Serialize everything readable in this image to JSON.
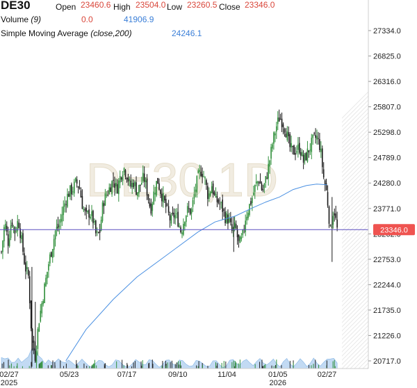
{
  "header": {
    "symbol": "DE30",
    "open_label": "Open",
    "open_value": "23460.6",
    "high_label": "High",
    "high_value": "23504.0",
    "low_label": "Low",
    "low_value": "23260.5",
    "close_label": "Close",
    "close_value": "23346.0",
    "volume_label": "Volume",
    "volume_param": "(9)",
    "volume_value_1": "0.0",
    "volume_value_2": "41906.9",
    "sma_label": "Simple Moving Average",
    "sma_param": "(close,200)",
    "sma_value": "24246.1"
  },
  "watermark": "DE30,1D",
  "colors": {
    "up": "#2f8f3a",
    "down": "#1a1a1a",
    "sma": "#4a90e2",
    "price_line": "#5b4fbf",
    "last_price_bg": "#ef5350",
    "red_text": "#d9463a",
    "blue_text": "#3b7fd8"
  },
  "chart_data": {
    "type": "candlestick",
    "y_ticks": [
      "27334.0",
      "26825.0",
      "26316.0",
      "25807.0",
      "25298.0",
      "24789.0",
      "24280.0",
      "23771.0",
      "23262.0",
      "22753.0",
      "22244.0",
      "21735.0",
      "21226.0",
      "20717.0"
    ],
    "ylim": [
      20500,
      27600
    ],
    "x_ticks": [
      {
        "label": "02/27",
        "sub": "2025",
        "pos": 0.0
      },
      {
        "label": "05/23",
        "sub": "",
        "pos": 0.2
      },
      {
        "label": "07/17",
        "sub": "",
        "pos": 0.37
      },
      {
        "label": "09/10",
        "sub": "",
        "pos": 0.52
      },
      {
        "label": "11/04",
        "sub": "",
        "pos": 0.665
      },
      {
        "label": "01/05",
        "sub": "2026",
        "pos": 0.815
      },
      {
        "label": "02/27",
        "sub": "",
        "pos": 0.96
      }
    ],
    "last_price": 23346.0,
    "last_price_label": "23346.0",
    "close_path": [
      [
        0.0,
        22900
      ],
      [
        0.01,
        23500
      ],
      [
        0.02,
        23100
      ],
      [
        0.03,
        23550
      ],
      [
        0.04,
        23300
      ],
      [
        0.05,
        23550
      ],
      [
        0.06,
        23100
      ],
      [
        0.07,
        22600
      ],
      [
        0.08,
        22400
      ],
      [
        0.09,
        21100
      ],
      [
        0.1,
        20800
      ],
      [
        0.11,
        21500
      ],
      [
        0.12,
        21900
      ],
      [
        0.13,
        22300
      ],
      [
        0.14,
        22700
      ],
      [
        0.15,
        23000
      ],
      [
        0.16,
        23350
      ],
      [
        0.17,
        23400
      ],
      [
        0.18,
        23700
      ],
      [
        0.19,
        23950
      ],
      [
        0.2,
        24100
      ],
      [
        0.21,
        24150
      ],
      [
        0.22,
        24300
      ],
      [
        0.23,
        24200
      ],
      [
        0.24,
        23800
      ],
      [
        0.25,
        23600
      ],
      [
        0.26,
        23700
      ],
      [
        0.27,
        23550
      ],
      [
        0.28,
        23200
      ],
      [
        0.29,
        23300
      ],
      [
        0.3,
        23900
      ],
      [
        0.31,
        24050
      ],
      [
        0.32,
        24200
      ],
      [
        0.33,
        24350
      ],
      [
        0.34,
        24150
      ],
      [
        0.35,
        24400
      ],
      [
        0.36,
        24600
      ],
      [
        0.37,
        24450
      ],
      [
        0.38,
        24200
      ],
      [
        0.39,
        24300
      ],
      [
        0.4,
        24100
      ],
      [
        0.41,
        24250
      ],
      [
        0.42,
        24400
      ],
      [
        0.43,
        24100
      ],
      [
        0.44,
        23750
      ],
      [
        0.45,
        24100
      ],
      [
        0.46,
        24350
      ],
      [
        0.47,
        24100
      ],
      [
        0.48,
        23900
      ],
      [
        0.49,
        23700
      ],
      [
        0.5,
        23500
      ],
      [
        0.51,
        23650
      ],
      [
        0.52,
        23550
      ],
      [
        0.53,
        23300
      ],
      [
        0.54,
        23600
      ],
      [
        0.55,
        23750
      ],
      [
        0.56,
        23700
      ],
      [
        0.57,
        24100
      ],
      [
        0.58,
        24400
      ],
      [
        0.59,
        24550
      ],
      [
        0.6,
        24350
      ],
      [
        0.61,
        24000
      ],
      [
        0.62,
        24250
      ],
      [
        0.63,
        23950
      ],
      [
        0.64,
        23900
      ],
      [
        0.65,
        23800
      ],
      [
        0.66,
        23600
      ],
      [
        0.67,
        23550
      ],
      [
        0.68,
        23300
      ],
      [
        0.69,
        23400
      ],
      [
        0.7,
        23050
      ],
      [
        0.71,
        23150
      ],
      [
        0.72,
        23600
      ],
      [
        0.73,
        23800
      ],
      [
        0.74,
        24000
      ],
      [
        0.75,
        24250
      ],
      [
        0.76,
        24350
      ],
      [
        0.77,
        24100
      ],
      [
        0.78,
        24350
      ],
      [
        0.79,
        24700
      ],
      [
        0.8,
        25100
      ],
      [
        0.81,
        25400
      ],
      [
        0.82,
        25600
      ],
      [
        0.83,
        25500
      ],
      [
        0.84,
        25300
      ],
      [
        0.85,
        25000
      ],
      [
        0.86,
        24900
      ],
      [
        0.87,
        24950
      ],
      [
        0.88,
        25000
      ],
      [
        0.89,
        24700
      ],
      [
        0.9,
        24850
      ],
      [
        0.91,
        25000
      ],
      [
        0.92,
        25150
      ],
      [
        0.93,
        25200
      ],
      [
        0.94,
        25000
      ],
      [
        0.95,
        24400
      ],
      [
        0.96,
        24050
      ],
      [
        0.97,
        23300
      ],
      [
        0.98,
        23800
      ],
      [
        0.99,
        23350
      ]
    ],
    "sma_path": [
      [
        0.19,
        20717
      ],
      [
        0.25,
        21350
      ],
      [
        0.33,
        21950
      ],
      [
        0.4,
        22400
      ],
      [
        0.47,
        22750
      ],
      [
        0.52,
        23000
      ],
      [
        0.58,
        23300
      ],
      [
        0.63,
        23500
      ],
      [
        0.69,
        23620
      ],
      [
        0.74,
        23780
      ],
      [
        0.78,
        23900
      ],
      [
        0.82,
        24000
      ],
      [
        0.86,
        24150
      ],
      [
        0.9,
        24230
      ],
      [
        0.93,
        24260
      ],
      [
        0.96,
        24246
      ]
    ],
    "volume_spikes": [
      0.0,
      0.02,
      0.05,
      0.09,
      0.1,
      0.14,
      0.17,
      0.2,
      0.24,
      0.29,
      0.34,
      0.4,
      0.44,
      0.49,
      0.53,
      0.58,
      0.63,
      0.68,
      0.72,
      0.76,
      0.8,
      0.84,
      0.88,
      0.92,
      0.96,
      0.98
    ]
  }
}
